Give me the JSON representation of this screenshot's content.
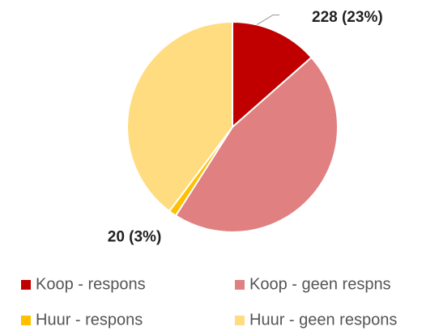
{
  "chart_data": {
    "type": "pie",
    "categories": [
      "Koop - respons",
      "Koop - geen respns",
      "Huur - respons",
      "Huur - geen respons"
    ],
    "values": [
      228,
      770,
      20,
      672
    ],
    "value_labels": [
      "228 (23%)",
      null,
      "20 (3%)",
      null
    ],
    "colors": [
      "#c00000",
      "#e08080",
      "#ffc000",
      "#ffdc80"
    ],
    "legend": "bottom"
  }
}
